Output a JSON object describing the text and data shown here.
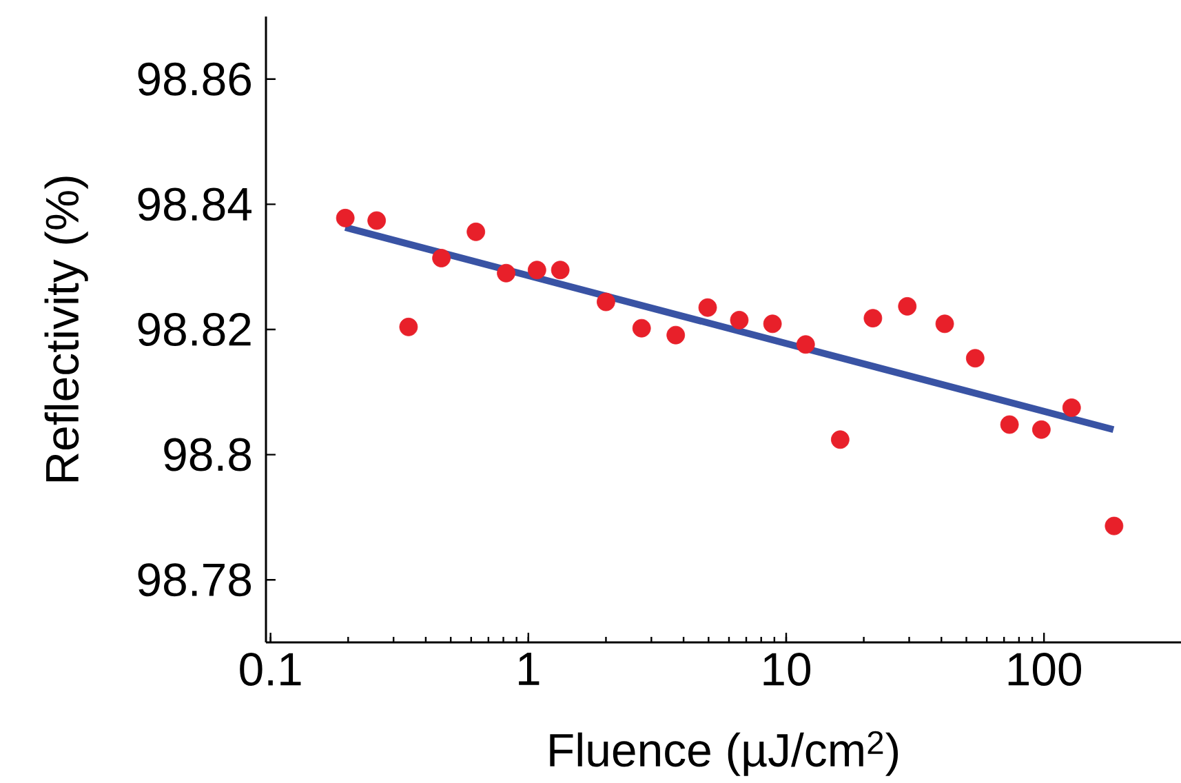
{
  "chart_data": {
    "type": "scatter",
    "xlabel": "Fluence (µJ/cm$^{2}$)",
    "ylabel": "Reflectivity (%)",
    "log": "x",
    "xlim": [
      0.096,
      340
    ],
    "ylim": [
      98.77,
      98.87
    ],
    "xticks": [
      0.1,
      1,
      10,
      100
    ],
    "yticks": [
      98.78,
      98.8,
      98.82,
      98.84,
      98.86
    ],
    "grid": false,
    "series": [
      {
        "color": "#e8202a",
        "marker": "circle",
        "x": [
          0.195,
          0.258,
          0.343,
          0.46,
          0.626,
          0.82,
          1.08,
          1.33,
          2.0,
          2.75,
          3.73,
          4.96,
          6.58,
          8.85,
          11.9,
          16.2,
          21.7,
          29.5,
          41.2,
          54.1,
          73.5,
          97.7,
          128,
          187
        ],
        "values": [
          98.8378,
          98.8374,
          98.8204,
          98.8314,
          98.8356,
          98.829,
          98.8295,
          98.8295,
          98.8244,
          98.8202,
          98.8191,
          98.8235,
          98.8215,
          98.8209,
          98.8176,
          98.8024,
          98.8218,
          98.8237,
          98.8209,
          98.8154,
          98.8048,
          98.804,
          98.8075,
          98.7886
        ]
      },
      {
        "type": "line",
        "color": "#3953a4",
        "marker": "none",
        "line_style": "solid",
        "x": [
          0.195,
          186
        ],
        "values": [
          98.8363,
          98.804
        ]
      }
    ]
  }
}
